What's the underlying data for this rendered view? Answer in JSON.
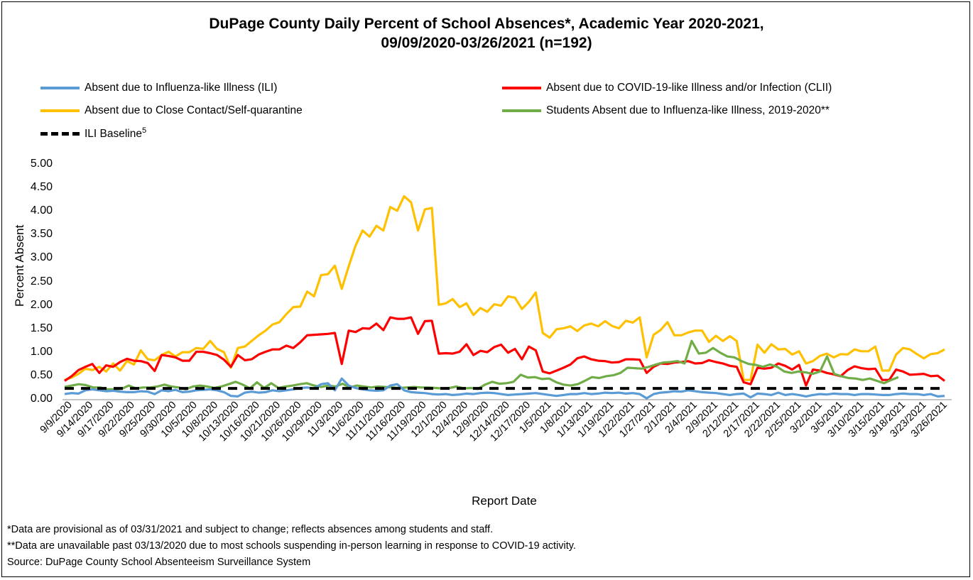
{
  "title_line1": "DuPage County Daily Percent of School Absences*, Academic Year 2020-2021,",
  "title_line2": "09/09/2020-03/26/2021 (n=192)",
  "legend": {
    "ili": "Absent due to Influenza-like Illness (ILI)",
    "clii": "Absent due to COVID-19-like Illness and/or Infection (CLII)",
    "close": "Absent due to Close Contact/Self-quarantine",
    "students_ili": "Students Absent due to Influenza-like Illness, 2019-2020**",
    "baseline": "ILI Baseline",
    "baseline_sup": "5"
  },
  "footnotes": {
    "f1": "*Data are provisional as of 03/31/2021 and subject to change; reflects absences among students and staff.",
    "f2": "**Data are unavailable past 03/13/2020 due to most schools suspending in-person learning in response to COVID-19 activity.",
    "f3": "Source: DuPage County School Absenteeism Surveillance System"
  },
  "chart_data": {
    "type": "line",
    "xlabel": "Report Date",
    "ylabel": "Percent Absent",
    "ylim": [
      0,
      5
    ],
    "yticks": [
      "0.00",
      "0.50",
      "1.00",
      "1.50",
      "2.00",
      "2.50",
      "3.00",
      "3.50",
      "4.00",
      "4.50",
      "5.00"
    ],
    "x_tick_labels": [
      "9/9/2020",
      "9/14/2020",
      "9/17/2020",
      "9/22/2020",
      "9/25/2020",
      "9/30/2020",
      "10/5/2020",
      "10/8/2020",
      "10/13/2020",
      "10/16/2020",
      "10/21/2020",
      "10/26/2020",
      "10/29/2020",
      "11/3/2020",
      "11/6/2020",
      "11/11/2020",
      "11/16/2020",
      "11/19/2020",
      "12/1/2020",
      "12/4/2020",
      "12/9/2020",
      "12/14/2020",
      "12/17/2020",
      "1/5/2021",
      "1/8/2021",
      "1/13/2021",
      "1/19/2021",
      "1/22/2021",
      "1/27/2021",
      "2/1/2021",
      "2/4/2021",
      "2/9/2021",
      "2/12/2021",
      "2/17/2021",
      "2/22/2021",
      "2/25/2021",
      "3/2/2021",
      "3/5/2021",
      "3/10/2021",
      "3/15/2021",
      "3/18/2021",
      "3/23/2021",
      "3/26/2021"
    ],
    "colors": {
      "ili": "#5B9BD5",
      "clii": "#FF0000",
      "close": "#FFC000",
      "students_ili": "#70AD47",
      "baseline": "#000000"
    },
    "series": [
      {
        "key": "close",
        "name": "Absent due to Close Contact/Self-quarantine",
        "values": [
          0.42,
          0.47,
          0.55,
          0.66,
          0.63,
          0.7,
          0.6,
          0.77,
          0.62,
          0.82,
          0.75,
          1.05,
          0.86,
          0.84,
          0.95,
          1.02,
          0.92,
          1.01,
          1.01,
          1.1,
          1.08,
          1.25,
          1.08,
          1.01,
          0.68,
          1.1,
          1.13,
          1.25,
          1.37,
          1.47,
          1.6,
          1.65,
          1.82,
          1.97,
          1.98,
          2.3,
          2.2,
          2.65,
          2.67,
          2.85,
          2.36,
          2.84,
          3.28,
          3.6,
          3.47,
          3.7,
          3.6,
          4.1,
          4.02,
          4.33,
          4.2,
          3.6,
          4.05,
          4.08,
          2.02,
          2.05,
          2.14,
          1.97,
          2.05,
          1.8,
          1.95,
          1.87,
          2.03,
          2.0,
          2.2,
          2.17,
          1.93,
          2.08,
          2.28,
          1.42,
          1.32,
          1.5,
          1.52,
          1.56,
          1.46,
          1.58,
          1.62,
          1.56,
          1.67,
          1.57,
          1.52,
          1.68,
          1.64,
          1.75,
          0.9,
          1.38,
          1.48,
          1.65,
          1.37,
          1.37,
          1.43,
          1.47,
          1.47,
          1.23,
          1.36,
          1.25,
          1.35,
          1.25,
          0.42,
          0.42,
          1.17,
          1.0,
          1.18,
          1.07,
          1.08,
          0.96,
          1.03,
          0.77,
          0.82,
          0.93,
          0.98,
          0.9,
          0.97,
          0.96,
          1.07,
          1.03,
          1.03,
          1.13,
          0.62,
          0.62,
          0.96,
          1.1,
          1.07,
          0.97,
          0.88,
          0.97,
          0.99,
          1.07
        ]
      },
      {
        "key": "clii",
        "name": "Absent due to COVID-19-like Illness and/or Infection (CLII)",
        "values": [
          0.4,
          0.5,
          0.63,
          0.7,
          0.76,
          0.57,
          0.73,
          0.7,
          0.8,
          0.87,
          0.83,
          0.82,
          0.78,
          0.61,
          0.95,
          0.93,
          0.9,
          0.83,
          0.83,
          1.02,
          1.02,
          0.99,
          0.95,
          0.85,
          0.7,
          0.95,
          0.84,
          0.86,
          0.96,
          1.02,
          1.07,
          1.07,
          1.15,
          1.1,
          1.22,
          1.37,
          1.38,
          1.39,
          1.4,
          1.42,
          0.76,
          1.47,
          1.44,
          1.52,
          1.51,
          1.62,
          1.48,
          1.75,
          1.72,
          1.72,
          1.75,
          1.4,
          1.67,
          1.68,
          0.98,
          0.99,
          0.98,
          1.02,
          1.18,
          0.95,
          1.04,
          1.01,
          1.12,
          1.17,
          1.0,
          1.08,
          0.86,
          1.13,
          1.05,
          0.6,
          0.56,
          0.62,
          0.68,
          0.75,
          0.88,
          0.92,
          0.86,
          0.83,
          0.82,
          0.79,
          0.8,
          0.86,
          0.86,
          0.85,
          0.57,
          0.7,
          0.77,
          0.76,
          0.79,
          0.8,
          0.82,
          0.77,
          0.78,
          0.84,
          0.8,
          0.77,
          0.72,
          0.7,
          0.37,
          0.33,
          0.68,
          0.66,
          0.68,
          0.77,
          0.72,
          0.64,
          0.74,
          0.3,
          0.64,
          0.62,
          0.57,
          0.54,
          0.5,
          0.63,
          0.71,
          0.67,
          0.65,
          0.66,
          0.42,
          0.42,
          0.64,
          0.6,
          0.53,
          0.54,
          0.55,
          0.5,
          0.51,
          0.4
        ]
      },
      {
        "key": "students_ili",
        "name": "Students Absent due to Influenza-like Illness, 2019-2020**",
        "values": [
          0.27,
          0.3,
          0.33,
          0.31,
          0.26,
          0.26,
          0.22,
          0.22,
          0.23,
          0.3,
          0.24,
          0.26,
          0.26,
          0.28,
          0.32,
          0.28,
          0.26,
          0.22,
          0.28,
          0.3,
          0.28,
          0.25,
          0.28,
          0.33,
          0.38,
          0.32,
          0.24,
          0.37,
          0.25,
          0.35,
          0.25,
          0.28,
          0.3,
          0.33,
          0.35,
          0.3,
          0.27,
          0.3,
          0.28,
          0.34,
          0.26,
          0.3,
          0.28,
          0.26,
          0.28,
          0.27,
          0.26,
          0.25,
          0.26,
          0.27,
          0.26,
          0.26,
          0.25,
          0.24,
          0.25,
          0.28,
          0.24,
          0.25,
          0.23,
          0.32,
          0.38,
          0.34,
          0.35,
          0.38,
          0.53,
          0.47,
          0.48,
          0.44,
          0.45,
          0.37,
          0.32,
          0.3,
          0.33,
          0.4,
          0.48,
          0.46,
          0.5,
          0.52,
          0.57,
          0.68,
          0.67,
          0.66,
          0.7,
          0.75,
          0.79,
          0.8,
          0.82,
          0.77,
          1.25,
          0.98,
          1.0,
          1.1,
          1.0,
          0.92,
          0.9,
          0.82,
          0.76,
          0.74,
          0.7,
          0.75,
          0.7,
          0.6,
          0.57,
          0.6,
          0.58,
          0.55,
          0.6,
          0.92,
          0.55,
          0.5,
          0.46,
          0.45,
          0.42,
          0.45,
          0.4,
          0.35,
          0.42,
          0.48
        ]
      },
      {
        "key": "ili",
        "name": "Absent due to Influenza-like Illness (ILI)",
        "values": [
          0.12,
          0.14,
          0.13,
          0.2,
          0.22,
          0.2,
          0.18,
          0.19,
          0.17,
          0.16,
          0.16,
          0.18,
          0.17,
          0.12,
          0.2,
          0.18,
          0.21,
          0.16,
          0.17,
          0.2,
          0.21,
          0.22,
          0.2,
          0.16,
          0.08,
          0.07,
          0.15,
          0.17,
          0.15,
          0.16,
          0.2,
          0.18,
          0.2,
          0.22,
          0.25,
          0.26,
          0.24,
          0.33,
          0.35,
          0.2,
          0.45,
          0.3,
          0.25,
          0.22,
          0.2,
          0.19,
          0.2,
          0.3,
          0.33,
          0.2,
          0.16,
          0.15,
          0.14,
          0.12,
          0.11,
          0.12,
          0.1,
          0.11,
          0.13,
          0.12,
          0.14,
          0.15,
          0.14,
          0.12,
          0.1,
          0.11,
          0.12,
          0.13,
          0.14,
          0.12,
          0.1,
          0.08,
          0.1,
          0.12,
          0.12,
          0.14,
          0.12,
          0.13,
          0.15,
          0.14,
          0.15,
          0.13,
          0.14,
          0.12,
          0.03,
          0.12,
          0.15,
          0.16,
          0.18,
          0.17,
          0.2,
          0.18,
          0.16,
          0.15,
          0.14,
          0.12,
          0.1,
          0.12,
          0.13,
          0.05,
          0.13,
          0.12,
          0.1,
          0.15,
          0.1,
          0.12,
          0.1,
          0.07,
          0.1,
          0.12,
          0.11,
          0.13,
          0.12,
          0.12,
          0.1,
          0.12,
          0.12,
          0.11,
          0.1,
          0.1,
          0.12,
          0.13,
          0.12,
          0.12,
          0.1,
          0.12,
          0.07,
          0.08
        ]
      },
      {
        "key": "baseline",
        "name": "ILI Baseline",
        "values": [
          0.24,
          0.24
        ]
      }
    ]
  }
}
